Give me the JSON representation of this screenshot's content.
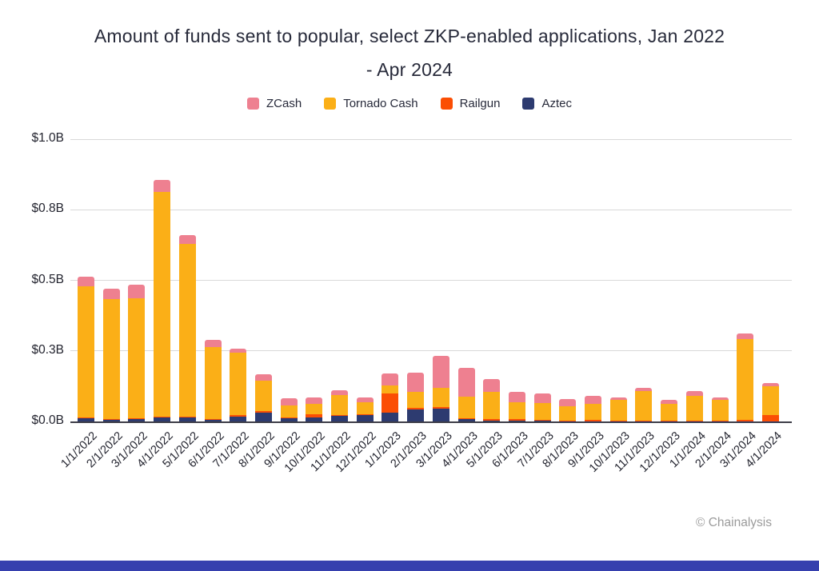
{
  "page": {
    "background": "#ffffff",
    "footer_bar_color": "#3640ae"
  },
  "watermark": {
    "text": "© Chainalysis",
    "color": "#9b9b9b"
  },
  "chart_data": {
    "type": "bar",
    "stacked": true,
    "title": "Amount of funds sent to popular, select ZKP-enabled applications, Jan 2022 - Apr 2024",
    "title_lines": [
      "Amount of funds sent to popular, select ZKP-enabled applications, Jan 2022",
      "- Apr 2024"
    ],
    "unit": "USD billions",
    "legend_position": "top",
    "grid": "horizontal",
    "ylim": [
      0,
      1.0
    ],
    "yticks": [
      {
        "value": 0.0,
        "label": "$0.0B"
      },
      {
        "value": 0.25,
        "label": "$0.3B"
      },
      {
        "value": 0.5,
        "label": "$0.5B"
      },
      {
        "value": 0.75,
        "label": "$0.8B"
      },
      {
        "value": 1.0,
        "label": "$1.0B"
      }
    ],
    "categories": [
      "1/1/2022",
      "2/1/2022",
      "3/1/2022",
      "4/1/2022",
      "5/1/2022",
      "6/1/2022",
      "7/1/2022",
      "8/1/2022",
      "9/1/2022",
      "10/1/2022",
      "11/1/2022",
      "12/1/2022",
      "1/1/2023",
      "2/1/2023",
      "3/1/2023",
      "4/1/2023",
      "5/1/2023",
      "6/1/2023",
      "7/1/2023",
      "8/1/2023",
      "9/1/2023",
      "10/1/2023",
      "11/1/2023",
      "12/1/2023",
      "1/1/2024",
      "2/1/2024",
      "3/1/2024",
      "4/1/2024"
    ],
    "series": [
      {
        "name": "ZCash",
        "color": "#ee8090",
        "values": [
          0.033,
          0.038,
          0.047,
          0.042,
          0.031,
          0.025,
          0.016,
          0.022,
          0.026,
          0.025,
          0.018,
          0.016,
          0.042,
          0.068,
          0.113,
          0.102,
          0.045,
          0.036,
          0.034,
          0.024,
          0.027,
          0.01,
          0.012,
          0.014,
          0.015,
          0.01,
          0.022,
          0.01
        ]
      },
      {
        "name": "Tornado Cash",
        "color": "#fbaf17",
        "values": [
          0.465,
          0.424,
          0.425,
          0.796,
          0.612,
          0.256,
          0.219,
          0.109,
          0.044,
          0.036,
          0.069,
          0.042,
          0.028,
          0.058,
          0.067,
          0.077,
          0.096,
          0.061,
          0.06,
          0.051,
          0.058,
          0.073,
          0.105,
          0.061,
          0.09,
          0.074,
          0.285,
          0.102
        ]
      },
      {
        "name": "Railgun",
        "color": "#fb4e04",
        "values": [
          0.001,
          0.001,
          0.001,
          0.002,
          0.001,
          0.001,
          0.007,
          0.006,
          0.001,
          0.012,
          0.005,
          0.002,
          0.069,
          0.005,
          0.006,
          0.003,
          0.005,
          0.006,
          0.004,
          0.003,
          0.004,
          0.002,
          0.002,
          0.001,
          0.001,
          0.001,
          0.005,
          0.023
        ]
      },
      {
        "name": "Aztec",
        "color": "#2d3b70",
        "values": [
          0.013,
          0.008,
          0.011,
          0.015,
          0.016,
          0.007,
          0.017,
          0.03,
          0.012,
          0.013,
          0.019,
          0.024,
          0.031,
          0.043,
          0.045,
          0.009,
          0.003,
          0.002,
          0.002,
          0.001,
          0.001,
          0.001,
          0.001,
          0.001,
          0.001,
          0.001,
          0.001,
          0.001
        ]
      }
    ],
    "stack_order_bottom_to_top": [
      "Aztec",
      "Railgun",
      "Tornado Cash",
      "ZCash"
    ]
  }
}
